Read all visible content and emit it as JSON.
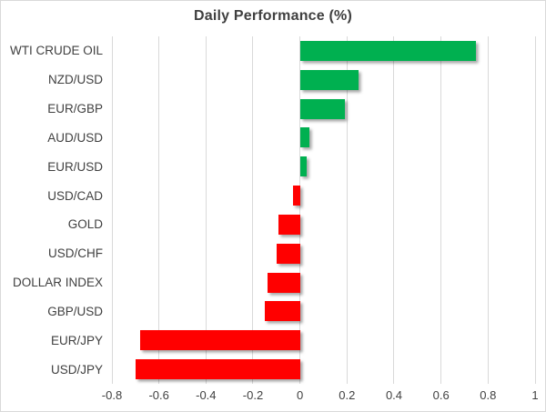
{
  "chart_data": {
    "type": "bar",
    "orientation": "horizontal",
    "title": "Daily Performance (%)",
    "categories": [
      "WTI CRUDE OIL",
      "NZD/USD",
      "EUR/GBP",
      "AUD/USD",
      "EUR/USD",
      "USD/CAD",
      "GOLD",
      "USD/CHF",
      "DOLLAR INDEX",
      "GBP/USD",
      "EUR/JPY",
      "USD/JPY"
    ],
    "values": [
      0.75,
      0.25,
      0.19,
      0.04,
      0.03,
      -0.03,
      -0.09,
      -0.1,
      -0.14,
      -0.15,
      -0.68,
      -0.7
    ],
    "xlabel": "",
    "ylabel": "",
    "xlim": [
      -0.8,
      1
    ],
    "x_tick_labels": [
      "-0.8",
      "-0.6",
      "-0.4",
      "-0.2",
      "0",
      "0.2",
      "0.4",
      "0.6",
      "0.8",
      "1"
    ],
    "x_tick_values": [
      -0.8,
      -0.6,
      -0.4,
      -0.2,
      0,
      0.2,
      0.4,
      0.6,
      0.8,
      1
    ],
    "grid": "vertical",
    "legend": "none",
    "colors": {
      "positive_bar": "#00B050",
      "negative_bar": "#FF0000",
      "gridline": "#D9D9D9",
      "chart_border": "#D9D9D9",
      "title_text": "#3F3F3F",
      "label_text": "#404040",
      "background": "#FFFFFF"
    }
  }
}
